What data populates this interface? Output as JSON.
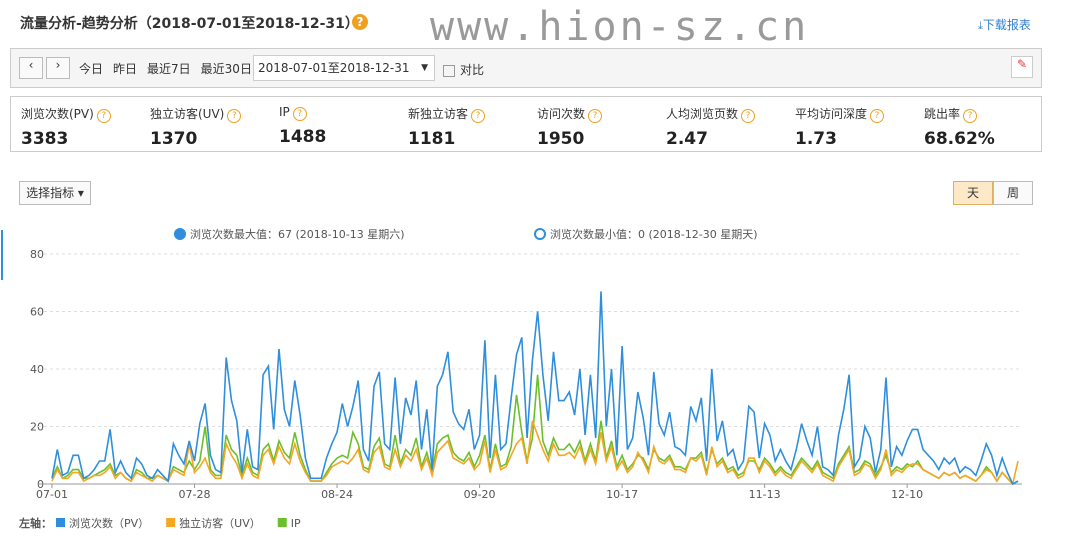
{
  "header": {
    "title": "流量分析-趋势分析（2018-07-01至2018-12-31）",
    "download": "下载报表",
    "watermark": "www.hion-sz.cn"
  },
  "toolbar": {
    "quick": [
      "今日",
      "昨日",
      "最近7日",
      "最近30日"
    ],
    "range": "2018-07-01至2018-12-31",
    "compare": "对比"
  },
  "metrics": [
    {
      "label": "浏览次数(PV)",
      "value": 3383
    },
    {
      "label": "独立访客(UV)",
      "value": 1370
    },
    {
      "label": "IP",
      "value": 1488
    },
    {
      "label": "新独立访客",
      "value": 1181
    },
    {
      "label": "访问次数",
      "value": 1950
    },
    {
      "label": "人均浏览页数",
      "value": 2.47
    },
    {
      "label": "平均访问深度",
      "value": 1.73
    },
    {
      "label": "跳出率",
      "value": "68.62%"
    }
  ],
  "controls": {
    "select": "选择指标",
    "day": "天",
    "week": "周"
  },
  "chart_data": {
    "type": "line",
    "annotations": [
      "浏览次数最大值：67 (2018-10-13 星期六)",
      "浏览次数最小值：0 (2018-12-30 星期天)"
    ],
    "legend_prefix": "左轴：",
    "categories": [
      "07-01",
      null,
      null,
      null,
      null,
      null,
      null,
      null,
      null,
      null,
      null,
      null,
      null,
      null,
      null,
      null,
      null,
      null,
      null,
      null,
      null,
      null,
      null,
      null,
      null,
      null,
      null,
      "07-28",
      null,
      null,
      null,
      null,
      null,
      null,
      null,
      null,
      null,
      null,
      null,
      null,
      null,
      null,
      null,
      null,
      null,
      null,
      null,
      null,
      null,
      null,
      null,
      null,
      null,
      null,
      "08-24",
      null,
      null,
      null,
      null,
      null,
      null,
      null,
      null,
      null,
      null,
      null,
      null,
      null,
      null,
      null,
      null,
      null,
      null,
      null,
      null,
      null,
      null,
      null,
      null,
      null,
      null,
      "09-20",
      null,
      null,
      null,
      null,
      null,
      null,
      null,
      null,
      null,
      null,
      null,
      null,
      null,
      null,
      null,
      null,
      null,
      null,
      null,
      null,
      null,
      null,
      null,
      null,
      null,
      null,
      "10-17",
      null,
      null,
      null,
      null,
      null,
      null,
      null,
      null,
      null,
      null,
      null,
      null,
      null,
      null,
      null,
      null,
      null,
      null,
      null,
      null,
      null,
      null,
      null,
      null,
      null,
      null,
      "11-13",
      null,
      null,
      null,
      null,
      null,
      null,
      null,
      null,
      null,
      null,
      null,
      null,
      null,
      null,
      null,
      null,
      null,
      null,
      null,
      null,
      null,
      null,
      null,
      null,
      null,
      null,
      "12-10",
      null,
      null,
      null,
      null,
      null,
      null,
      null,
      null,
      null,
      null,
      null,
      null,
      null,
      null,
      null,
      null,
      null,
      null,
      null,
      null,
      null
    ],
    "series": [
      {
        "name": "浏览次数（PV）",
        "color": "#2f8fdc",
        "values": [
          2,
          12,
          3,
          4,
          10,
          10,
          2,
          3,
          5,
          8,
          8,
          19,
          4,
          8,
          4,
          2,
          9,
          7,
          3,
          2,
          5,
          3,
          1,
          14,
          10,
          7,
          15,
          8,
          21,
          28,
          10,
          5,
          4,
          44,
          29,
          22,
          4,
          19,
          6,
          5,
          38,
          41,
          19,
          47,
          26,
          20,
          36,
          24,
          9,
          2,
          2,
          2,
          9,
          14,
          18,
          28,
          20,
          27,
          36,
          12,
          8,
          34,
          39,
          14,
          12,
          37,
          14,
          30,
          24,
          36,
          12,
          26,
          5,
          34,
          38,
          46,
          25,
          21,
          19,
          26,
          12,
          17,
          50,
          9,
          38,
          12,
          14,
          30,
          45,
          51,
          16,
          43,
          60,
          38,
          22,
          46,
          29,
          29,
          32,
          24,
          40,
          17,
          38,
          16,
          67,
          20,
          40,
          10,
          48,
          12,
          16,
          32,
          23,
          10,
          39,
          21,
          17,
          25,
          13,
          12,
          10,
          27,
          22,
          30,
          8,
          40,
          15,
          22,
          10,
          12,
          5,
          8,
          27,
          25,
          9,
          21,
          17,
          8,
          12,
          8,
          5,
          12,
          21,
          15,
          10,
          20,
          6,
          5,
          3,
          17,
          26,
          38,
          6,
          9,
          20,
          16,
          4,
          12,
          37,
          6,
          13,
          10,
          15,
          19,
          19,
          12,
          10,
          8,
          5,
          9,
          7,
          9,
          4,
          6,
          5,
          3,
          8,
          14,
          10,
          3,
          9,
          4,
          0,
          1
        ]
      },
      {
        "name": "独立访客（UV）",
        "color": "#f5a623",
        "values": [
          1,
          5,
          2,
          2,
          4,
          4,
          1,
          2,
          3,
          3,
          4,
          6,
          2,
          4,
          2,
          1,
          4,
          3,
          2,
          1,
          3,
          2,
          1,
          5,
          4,
          3,
          14,
          4,
          6,
          9,
          4,
          2,
          2,
          14,
          10,
          7,
          2,
          7,
          3,
          2,
          10,
          12,
          7,
          13,
          9,
          7,
          14,
          8,
          4,
          1,
          1,
          1,
          3,
          6,
          7,
          8,
          7,
          9,
          12,
          5,
          4,
          11,
          13,
          6,
          5,
          12,
          6,
          10,
          8,
          12,
          5,
          9,
          3,
          11,
          13,
          15,
          9,
          8,
          7,
          9,
          5,
          7,
          15,
          4,
          12,
          5,
          6,
          10,
          14,
          16,
          7,
          22,
          17,
          12,
          8,
          14,
          10,
          10,
          11,
          9,
          13,
          7,
          12,
          7,
          18,
          8,
          13,
          5,
          8,
          4,
          6,
          11,
          8,
          4,
          13,
          8,
          7,
          9,
          5,
          5,
          4,
          9,
          8,
          10,
          3,
          13,
          6,
          8,
          4,
          5,
          2,
          3,
          9,
          9,
          4,
          8,
          6,
          3,
          5,
          3,
          2,
          5,
          8,
          6,
          4,
          7,
          3,
          2,
          1,
          6,
          9,
          12,
          3,
          4,
          7,
          6,
          2,
          5,
          12,
          3,
          5,
          4,
          6,
          7,
          7,
          5,
          4,
          3,
          2,
          4,
          3,
          4,
          2,
          3,
          2,
          1,
          3,
          5,
          4,
          1,
          4,
          2,
          0,
          8
        ]
      },
      {
        "name": "IP",
        "color": "#6cbf2c",
        "values": [
          2,
          6,
          2,
          3,
          5,
          5,
          2,
          2,
          3,
          4,
          5,
          7,
          3,
          4,
          2,
          1,
          5,
          4,
          2,
          2,
          3,
          2,
          1,
          6,
          5,
          4,
          8,
          5,
          8,
          20,
          5,
          3,
          3,
          17,
          12,
          10,
          3,
          9,
          4,
          3,
          12,
          14,
          8,
          15,
          11,
          9,
          18,
          10,
          5,
          1,
          1,
          1,
          4,
          7,
          9,
          10,
          9,
          18,
          14,
          6,
          5,
          13,
          16,
          7,
          6,
          17,
          7,
          12,
          10,
          16,
          6,
          11,
          4,
          14,
          16,
          17,
          11,
          9,
          8,
          11,
          6,
          10,
          17,
          5,
          14,
          6,
          7,
          13,
          31,
          18,
          8,
          16,
          38,
          15,
          10,
          16,
          12,
          12,
          14,
          11,
          15,
          8,
          14,
          8,
          22,
          9,
          15,
          6,
          10,
          5,
          7,
          10,
          9,
          5,
          12,
          9,
          8,
          10,
          6,
          6,
          5,
          9,
          9,
          11,
          4,
          12,
          7,
          9,
          5,
          6,
          3,
          4,
          8,
          8,
          5,
          9,
          7,
          4,
          6,
          4,
          3,
          6,
          9,
          7,
          5,
          8,
          4,
          3,
          2,
          7,
          10,
          13,
          4,
          5,
          8,
          7,
          3,
          6,
          10,
          4,
          6,
          5,
          7,
          6,
          8,
          5,
          4,
          3,
          2,
          4,
          3,
          4,
          2,
          3,
          2,
          1,
          3,
          6,
          4,
          1,
          4,
          2,
          0,
          1
        ]
      }
    ],
    "ylim": [
      0,
      80
    ],
    "yticks": [
      0,
      20,
      40,
      60,
      80
    ],
    "grid": true
  }
}
